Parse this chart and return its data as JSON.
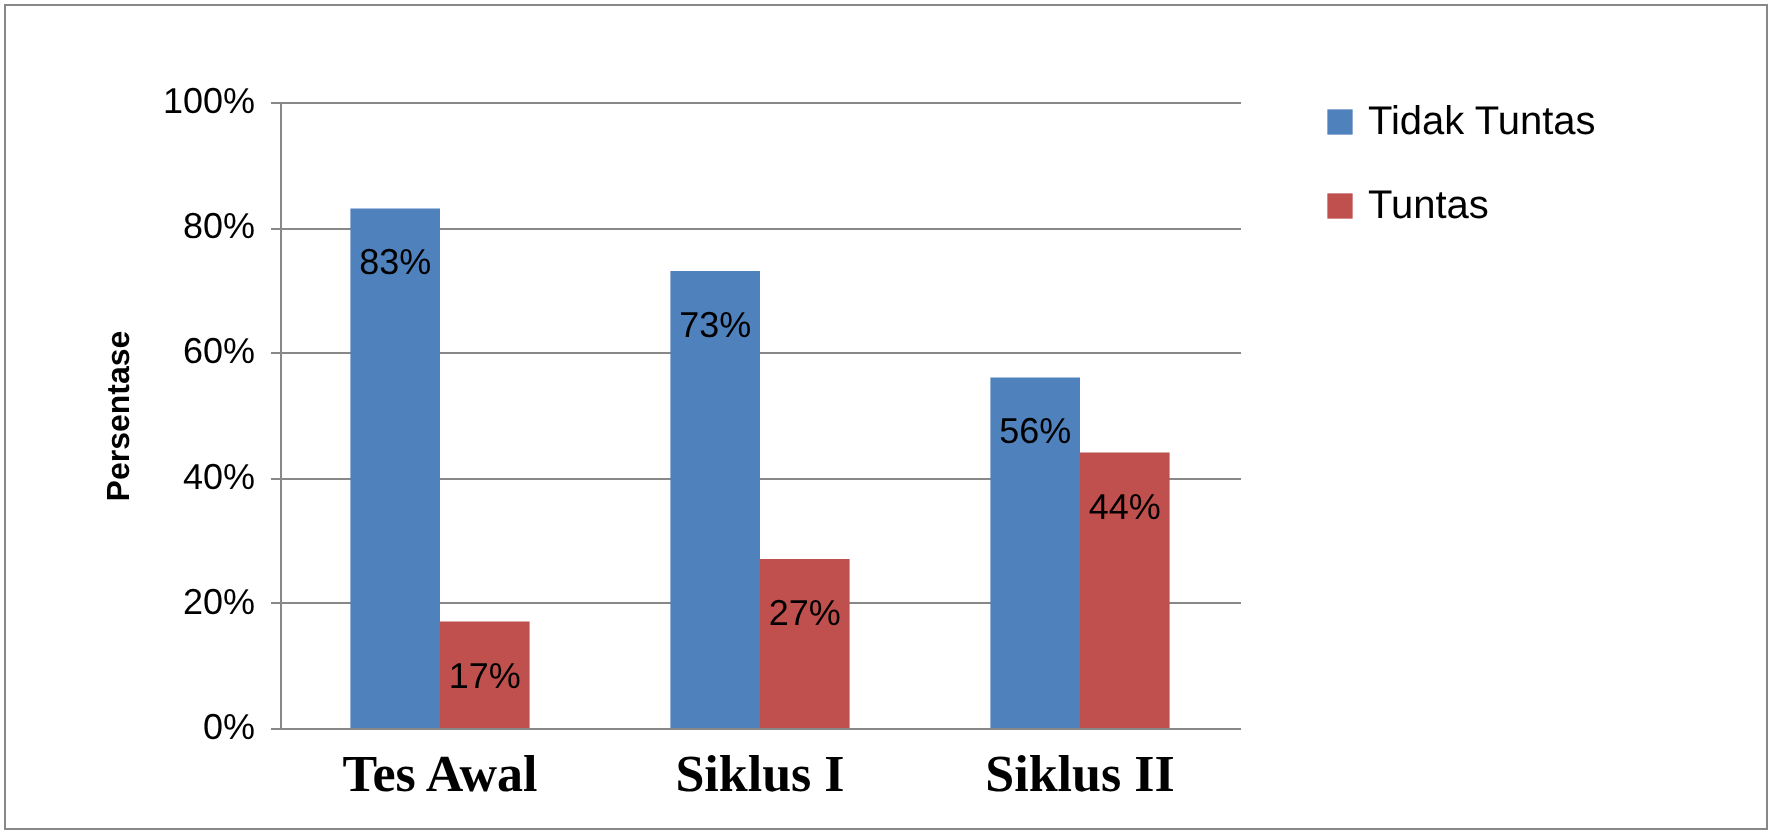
{
  "chart_data": {
    "type": "bar",
    "ylabel": "Persentase",
    "categories": [
      "Tes Awal",
      "Siklus I",
      "Siklus II"
    ],
    "series": [
      {
        "name": "Tidak Tuntas",
        "color": "#4f81bd",
        "values": [
          83,
          73,
          56
        ],
        "value_labels": [
          "83%",
          "73%",
          "56%"
        ]
      },
      {
        "name": "Tuntas",
        "color": "#c0504d",
        "values": [
          17,
          27,
          44
        ],
        "value_labels": [
          "17%",
          "27%",
          "44%"
        ]
      }
    ],
    "ylim": [
      0,
      100
    ],
    "yticks": [
      {
        "value": 0,
        "label": "0%"
      },
      {
        "value": 20,
        "label": "20%"
      },
      {
        "value": 40,
        "label": "40%"
      },
      {
        "value": 60,
        "label": "60%"
      },
      {
        "value": 80,
        "label": "80%"
      },
      {
        "value": 100,
        "label": "100%"
      }
    ],
    "grid": "y",
    "legend": "right"
  }
}
